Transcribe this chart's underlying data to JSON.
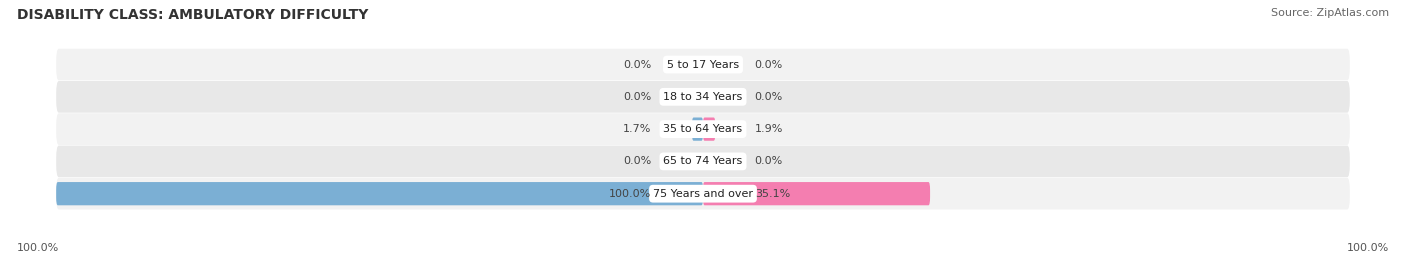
{
  "title": "DISABILITY CLASS: AMBULATORY DIFFICULTY",
  "source": "Source: ZipAtlas.com",
  "categories": [
    "5 to 17 Years",
    "18 to 34 Years",
    "35 to 64 Years",
    "65 to 74 Years",
    "75 Years and over"
  ],
  "male_values": [
    0.0,
    0.0,
    1.7,
    0.0,
    100.0
  ],
  "female_values": [
    0.0,
    0.0,
    1.9,
    0.0,
    35.1
  ],
  "male_color": "#7bafd4",
  "female_color": "#f47eb0",
  "male_color_dark": "#5a9ec4",
  "female_color_dark": "#e85fa0",
  "row_bg_even": "#f2f2f2",
  "row_bg_odd": "#e8e8e8",
  "max_val": 100.0,
  "title_fontsize": 10,
  "source_fontsize": 8,
  "label_fontsize": 8,
  "category_fontsize": 8,
  "tick_fontsize": 8,
  "figsize": [
    14.06,
    2.69
  ],
  "dpi": 100
}
